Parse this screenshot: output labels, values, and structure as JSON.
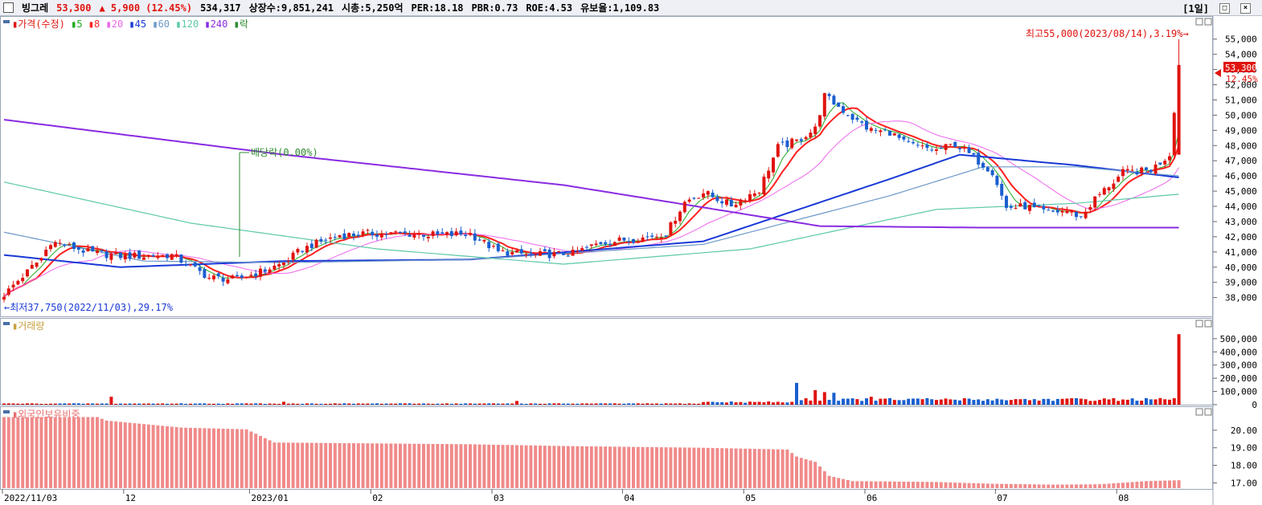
{
  "header": {
    "name": "빙그레",
    "price": "53,300",
    "change": "▲ 5,900 (12.45%)",
    "volume": "534,317",
    "shares": "상장수:9,851,241",
    "mktcap": "시총:5,250억",
    "per": "PER:18.18",
    "pbr": "PBR:0.73",
    "roe": "ROE:4.53",
    "float": "유보율:1,109.83",
    "period": "[1일]",
    "btn_min": "□",
    "btn_close": "×"
  },
  "legend": {
    "price_label": "가격(수정)",
    "ma": [
      {
        "label": "5",
        "color": "#22aa22"
      },
      {
        "label": "8",
        "color": "#ff2020"
      },
      {
        "label": "20",
        "color": "#ee66ee"
      },
      {
        "label": "45",
        "color": "#1a3ad6"
      },
      {
        "label": "60",
        "color": "#6c98c8"
      },
      {
        "label": "120",
        "color": "#5cc8a8"
      },
      {
        "label": "240",
        "color": "#8a2be2"
      }
    ],
    "ex_label": "락",
    "volume_label": "거래량",
    "foreign_label": "외국인보유비중"
  },
  "annotations": {
    "high": "최고55,000(2023/08/14),3.19%→",
    "low": "←최저37,750(2022/11/03),29.17%",
    "dividend": "배당락(0.00%)",
    "current_price": "53,300",
    "current_pct": "12.45%"
  },
  "chart_data": [
    {
      "type": "candlestick",
      "title": "",
      "y_ticks": [
        "55,000",
        "54,000",
        "53,000",
        "52,000",
        "51,000",
        "50,000",
        "49,000",
        "48,000",
        "47,000",
        "46,000",
        "45,000",
        "44,000",
        "43,000",
        "42,000",
        "41,000",
        "40,000",
        "39,000",
        "38,000"
      ],
      "ylim": [
        37400,
        56200
      ],
      "x_ticks": [
        "2022/11/03",
        "12",
        "2023/01",
        "02",
        "03",
        "04",
        "05",
        "06",
        "07",
        "08"
      ],
      "close_anchors": [
        [
          0,
          38200
        ],
        [
          8,
          40600
        ],
        [
          10,
          41700
        ],
        [
          18,
          41000
        ],
        [
          26,
          40700
        ],
        [
          36,
          40800
        ],
        [
          44,
          39300
        ],
        [
          50,
          39200
        ],
        [
          56,
          39800
        ],
        [
          60,
          40300
        ],
        [
          64,
          41200
        ],
        [
          68,
          41700
        ],
        [
          72,
          42100
        ],
        [
          78,
          42200
        ],
        [
          86,
          42200
        ],
        [
          93,
          42100
        ],
        [
          100,
          42200
        ],
        [
          106,
          41000
        ],
        [
          114,
          40800
        ],
        [
          122,
          40900
        ],
        [
          128,
          41600
        ],
        [
          136,
          41900
        ],
        [
          142,
          42200
        ],
        [
          146,
          44300
        ],
        [
          150,
          44900
        ],
        [
          156,
          44100
        ],
        [
          162,
          45100
        ],
        [
          166,
          47900
        ],
        [
          170,
          48300
        ],
        [
          174,
          49100
        ],
        [
          176,
          51300
        ],
        [
          178,
          50800
        ],
        [
          182,
          49800
        ],
        [
          186,
          49000
        ],
        [
          190,
          48900
        ],
        [
          193,
          48200
        ],
        [
          196,
          47900
        ],
        [
          200,
          47700
        ],
        [
          204,
          48100
        ],
        [
          208,
          47200
        ],
        [
          212,
          46300
        ],
        [
          215,
          43900
        ],
        [
          219,
          44000
        ],
        [
          224,
          43600
        ],
        [
          228,
          43700
        ],
        [
          231,
          43300
        ],
        [
          234,
          44500
        ],
        [
          240,
          46200
        ],
        [
          246,
          46400
        ],
        [
          250,
          47400
        ],
        [
          252,
          53300
        ]
      ],
      "last_candle": {
        "open": 47400,
        "high": 55000,
        "low": 47400,
        "close": 53300
      },
      "series": [
        {
          "name": "5",
          "color": "#22aa22"
        },
        {
          "name": "8",
          "color": "#ff2020"
        },
        {
          "name": "20",
          "color": "#ee66ee"
        },
        {
          "name": "45",
          "color": "#1a3ad6",
          "anchors": [
            [
              0,
              40800
            ],
            [
              25,
              40000
            ],
            [
              60,
              40400
            ],
            [
              100,
              40500
            ],
            [
              150,
              41700
            ],
            [
              190,
              45800
            ],
            [
              205,
              47400
            ],
            [
              230,
              46700
            ],
            [
              252,
              45900
            ]
          ]
        },
        {
          "name": "60",
          "color": "#6c98c8",
          "anchors": [
            [
              0,
              42300
            ],
            [
              30,
              40400
            ],
            [
              60,
              40300
            ],
            [
              100,
              40500
            ],
            [
              150,
              41500
            ],
            [
              190,
              44700
            ],
            [
              210,
              46600
            ],
            [
              230,
              46600
            ],
            [
              252,
              46000
            ]
          ]
        },
        {
          "name": "120",
          "color": "#5cc8a8",
          "anchors": [
            [
              0,
              45600
            ],
            [
              40,
              42900
            ],
            [
              80,
              41200
            ],
            [
              120,
              40200
            ],
            [
              160,
              41200
            ],
            [
              200,
              43800
            ],
            [
              230,
              44200
            ],
            [
              252,
              44800
            ]
          ]
        },
        {
          "name": "240",
          "color": "#8a2be2",
          "anchors": [
            [
              0,
              49700
            ],
            [
              60,
              47400
            ],
            [
              120,
              45400
            ],
            [
              175,
              42700
            ],
            [
              210,
              42600
            ],
            [
              252,
              42600
            ]
          ]
        }
      ]
    },
    {
      "type": "bar",
      "title": "",
      "y_ticks": [
        "500,000",
        "400,000",
        "300,000",
        "200,000",
        "100,000",
        "0"
      ],
      "ylim": [
        0,
        560000
      ],
      "spikes": [
        [
          23,
          60000
        ],
        [
          60,
          22000
        ],
        [
          110,
          28000
        ],
        [
          170,
          165000
        ],
        [
          174,
          110000
        ],
        [
          176,
          95000
        ],
        [
          178,
          90000
        ],
        [
          180,
          45000
        ],
        [
          186,
          60000
        ],
        [
          252,
          534317
        ]
      ]
    },
    {
      "type": "bar",
      "title": "",
      "y_ticks": [
        "20.00",
        "19.00",
        "18.00",
        "17.00"
      ],
      "ylim": [
        16.7,
        21.0
      ],
      "anchors": [
        [
          0,
          20.75
        ],
        [
          20,
          20.75
        ],
        [
          22,
          20.55
        ],
        [
          30,
          20.35
        ],
        [
          38,
          20.15
        ],
        [
          52,
          20.05
        ],
        [
          58,
          19.3
        ],
        [
          100,
          19.2
        ],
        [
          120,
          19.1
        ],
        [
          150,
          19.0
        ],
        [
          168,
          18.9
        ],
        [
          170,
          18.5
        ],
        [
          174,
          18.2
        ],
        [
          177,
          17.4
        ],
        [
          182,
          17.1
        ],
        [
          200,
          17.05
        ],
        [
          212,
          16.95
        ],
        [
          225,
          16.9
        ],
        [
          235,
          16.92
        ],
        [
          245,
          17.1
        ],
        [
          252,
          17.15
        ]
      ]
    }
  ]
}
